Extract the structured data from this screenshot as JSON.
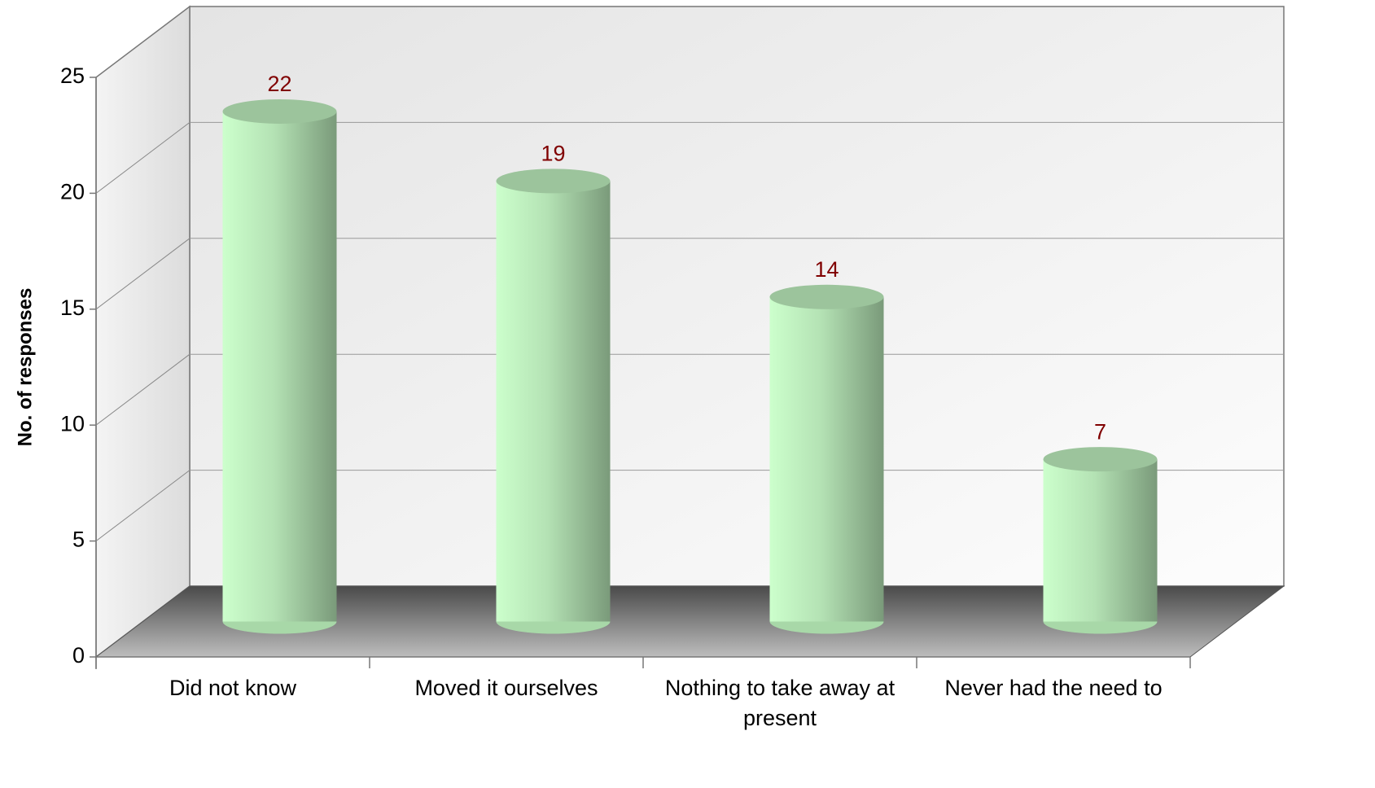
{
  "chart_data": {
    "type": "bar",
    "title": null,
    "categories": [
      "Did not know",
      "Moved it ourselves",
      "Nothing to take away at present",
      "Never had the need to"
    ],
    "values": [
      22,
      19,
      14,
      7
    ],
    "color": "#b8ecb8",
    "value_label_color": "#800000",
    "ylabel": "No. of responses",
    "ylim": [
      0,
      25
    ],
    "yticks": [
      0,
      5,
      10,
      15,
      20,
      25
    ],
    "grid": true
  }
}
